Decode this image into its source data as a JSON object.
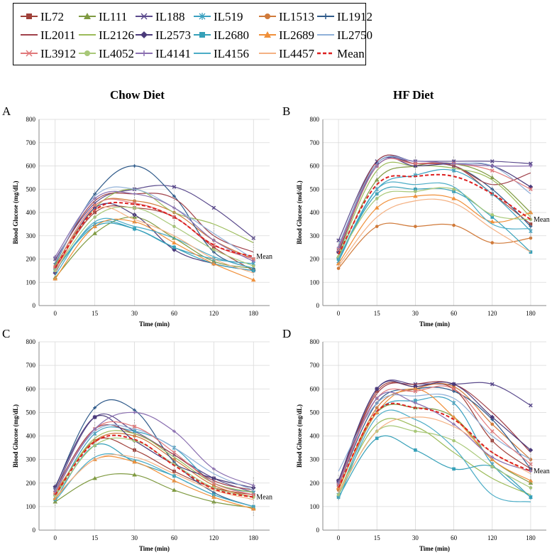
{
  "legend": {
    "entries": [
      "IL72",
      "IL111",
      "IL188",
      "IL519",
      "IL1513",
      "IL1912",
      "IL2011",
      "IL2126",
      "IL2573",
      "IL2680",
      "IL2689",
      "IL2750",
      "IL3912",
      "IL4052",
      "IL4141",
      "IL4156",
      "IL4457",
      "Mean"
    ],
    "colors": [
      "#a0413a",
      "#7f9a41",
      "#5a4a8c",
      "#3aa0c0",
      "#d07a3a",
      "#2f5a8a",
      "#a0414a",
      "#9bbb59",
      "#4a3a7a",
      "#35a0b8",
      "#f0903a",
      "#8fb0d8",
      "#e0787a",
      "#a8c878",
      "#8a6fb0",
      "#4bacc6",
      "#f4b183",
      "#dd2020"
    ],
    "markers": [
      "square",
      "triangle",
      "x",
      "star",
      "circle",
      "plus",
      "none",
      "none",
      "diamond",
      "square",
      "triangle",
      "none",
      "x",
      "circle",
      "plus",
      "none",
      "none",
      "dash"
    ]
  },
  "titles": {
    "chow": "Chow Diet",
    "hf": "HF Diet"
  },
  "chart_data": [
    {
      "type": "line",
      "panel": "A",
      "diet": "Chow Diet",
      "xlabel": "Time (min)",
      "ylabel": "Blood Glucose (mg/dL)",
      "x": [
        0,
        15,
        30,
        60,
        120,
        180
      ],
      "ylim": [
        0,
        800
      ],
      "yticks": [
        0,
        100,
        200,
        300,
        400,
        500,
        600,
        700,
        800
      ],
      "mean_label": "Mean",
      "series": [
        {
          "name": "IL72",
          "values": [
            160,
            400,
            420,
            380,
            250,
            150
          ]
        },
        {
          "name": "IL111",
          "values": [
            120,
            310,
            380,
            290,
            190,
            160
          ]
        },
        {
          "name": "IL188",
          "values": [
            200,
            440,
            500,
            510,
            420,
            290
          ]
        },
        {
          "name": "IL519",
          "values": [
            150,
            350,
            330,
            250,
            200,
            180
          ]
        },
        {
          "name": "IL1513",
          "values": [
            170,
            430,
            450,
            400,
            280,
            200
          ]
        },
        {
          "name": "IL1912",
          "values": [
            180,
            480,
            600,
            470,
            230,
            160
          ]
        },
        {
          "name": "IL2011",
          "values": [
            190,
            450,
            480,
            460,
            300,
            230
          ]
        },
        {
          "name": "IL2126",
          "values": [
            175,
            420,
            500,
            400,
            350,
            270
          ]
        },
        {
          "name": "IL2573",
          "values": [
            140,
            420,
            390,
            240,
            180,
            150
          ]
        },
        {
          "name": "IL2680",
          "values": [
            155,
            340,
            330,
            250,
            180,
            150
          ]
        },
        {
          "name": "IL2689",
          "values": [
            115,
            340,
            360,
            270,
            180,
            110
          ]
        },
        {
          "name": "IL2750",
          "values": [
            185,
            470,
            500,
            420,
            310,
            200
          ]
        },
        {
          "name": "IL3912",
          "values": [
            165,
            430,
            440,
            380,
            260,
            200
          ]
        },
        {
          "name": "IL4052",
          "values": [
            150,
            380,
            420,
            340,
            240,
            170
          ]
        },
        {
          "name": "IL4141",
          "values": [
            210,
            460,
            480,
            420,
            280,
            190
          ]
        },
        {
          "name": "IL4156",
          "values": [
            130,
            360,
            340,
            290,
            210,
            160
          ]
        },
        {
          "name": "IL4457",
          "values": [
            145,
            410,
            370,
            300,
            200,
            140
          ]
        },
        {
          "name": "Mean",
          "values": [
            162,
            410,
            435,
            380,
            260,
            210
          ]
        }
      ]
    },
    {
      "type": "line",
      "panel": "B",
      "diet": "HF Diet",
      "xlabel": "Time (min)",
      "ylabel": "Blood Glucose (md/dL)",
      "x": [
        0,
        15,
        30,
        60,
        120,
        180
      ],
      "ylim": [
        0,
        800
      ],
      "yticks": [
        0,
        100,
        200,
        300,
        400,
        500,
        600,
        700,
        800
      ],
      "mean_label": "Mean",
      "series": [
        {
          "name": "IL72",
          "values": [
            230,
            600,
            610,
            600,
            480,
            350
          ]
        },
        {
          "name": "IL111",
          "values": [
            210,
            540,
            600,
            610,
            550,
            400
          ]
        },
        {
          "name": "IL188",
          "values": [
            280,
            620,
            620,
            620,
            620,
            610
          ]
        },
        {
          "name": "IL519",
          "values": [
            190,
            500,
            560,
            580,
            480,
            320
          ]
        },
        {
          "name": "IL1513",
          "values": [
            160,
            340,
            340,
            345,
            270,
            290
          ]
        },
        {
          "name": "IL1912",
          "values": [
            240,
            610,
            610,
            600,
            500,
            340
          ]
        },
        {
          "name": "IL2011",
          "values": [
            250,
            620,
            610,
            600,
            520,
            570
          ]
        },
        {
          "name": "IL2126",
          "values": [
            220,
            580,
            600,
            590,
            540,
            380
          ]
        },
        {
          "name": "IL2573",
          "values": [
            230,
            610,
            600,
            610,
            600,
            510
          ]
        },
        {
          "name": "IL2680",
          "values": [
            200,
            480,
            500,
            490,
            380,
            230
          ]
        },
        {
          "name": "IL2689",
          "values": [
            180,
            420,
            470,
            460,
            360,
            400
          ]
        },
        {
          "name": "IL2750",
          "values": [
            260,
            610,
            620,
            610,
            600,
            480
          ]
        },
        {
          "name": "IL3912",
          "values": [
            240,
            600,
            610,
            610,
            580,
            500
          ]
        },
        {
          "name": "IL4052",
          "values": [
            210,
            460,
            490,
            500,
            390,
            370
          ]
        },
        {
          "name": "IL4141",
          "values": [
            250,
            600,
            620,
            610,
            600,
            600
          ]
        },
        {
          "name": "IL4156",
          "values": [
            200,
            500,
            520,
            510,
            350,
            330
          ]
        },
        {
          "name": "IL4457",
          "values": [
            170,
            380,
            450,
            440,
            330,
            230
          ]
        },
        {
          "name": "Mean",
          "values": [
            220,
            520,
            555,
            555,
            480,
            370
          ]
        }
      ]
    },
    {
      "type": "line",
      "panel": "C",
      "diet": "Chow Diet",
      "xlabel": "Time (min)",
      "ylabel": "Blood Glucose (mg/dL)",
      "x": [
        0,
        15,
        30,
        60,
        120,
        180
      ],
      "ylim": [
        0,
        800
      ],
      "yticks": [
        0,
        100,
        200,
        300,
        400,
        500,
        600,
        700,
        800
      ],
      "mean_label": "Mean",
      "series": [
        {
          "name": "IL72",
          "values": [
            150,
            380,
            340,
            250,
            180,
            150
          ]
        },
        {
          "name": "IL111",
          "values": [
            120,
            220,
            235,
            170,
            120,
            95
          ]
        },
        {
          "name": "IL188",
          "values": [
            170,
            480,
            420,
            320,
            220,
            160
          ]
        },
        {
          "name": "IL519",
          "values": [
            140,
            410,
            420,
            350,
            200,
            160
          ]
        },
        {
          "name": "IL1513",
          "values": [
            160,
            380,
            400,
            300,
            190,
            140
          ]
        },
        {
          "name": "IL1912",
          "values": [
            180,
            520,
            510,
            290,
            160,
            100
          ]
        },
        {
          "name": "IL2011",
          "values": [
            175,
            430,
            410,
            320,
            210,
            170
          ]
        },
        {
          "name": "IL2126",
          "values": [
            150,
            390,
            410,
            310,
            200,
            160
          ]
        },
        {
          "name": "IL2573",
          "values": [
            185,
            480,
            380,
            280,
            220,
            180
          ]
        },
        {
          "name": "IL2680",
          "values": [
            130,
            360,
            290,
            230,
            150,
            100
          ]
        },
        {
          "name": "IL2689",
          "values": [
            135,
            300,
            290,
            210,
            140,
            90
          ]
        },
        {
          "name": "IL2750",
          "values": [
            170,
            420,
            430,
            350,
            240,
            170
          ]
        },
        {
          "name": "IL3912",
          "values": [
            160,
            430,
            440,
            330,
            200,
            150
          ]
        },
        {
          "name": "IL4052",
          "values": [
            145,
            360,
            380,
            280,
            180,
            140
          ]
        },
        {
          "name": "IL4141",
          "values": [
            165,
            430,
            500,
            420,
            260,
            190
          ]
        },
        {
          "name": "IL4156",
          "values": [
            125,
            310,
            300,
            230,
            150,
            100
          ]
        },
        {
          "name": "IL4457",
          "values": [
            140,
            300,
            310,
            240,
            170,
            130
          ]
        },
        {
          "name": "Mean",
          "values": [
            150,
            375,
            385,
            275,
            175,
            140
          ]
        }
      ]
    },
    {
      "type": "line",
      "panel": "D",
      "diet": "HF Diet",
      "xlabel": "Time (min)",
      "ylabel": "Blood Glucose (mg/dL)",
      "x": [
        0,
        15,
        30,
        60,
        120,
        180
      ],
      "ylim": [
        0,
        800
      ],
      "yticks": [
        0,
        100,
        200,
        300,
        400,
        500,
        600,
        700,
        800
      ],
      "mean_label": "Mean",
      "series": [
        {
          "name": "IL72",
          "values": [
            200,
            590,
            610,
            600,
            380,
            260
          ]
        },
        {
          "name": "IL111",
          "values": [
            180,
            500,
            520,
            480,
            300,
            200
          ]
        },
        {
          "name": "IL188",
          "values": [
            210,
            600,
            620,
            620,
            620,
            530
          ]
        },
        {
          "name": "IL519",
          "values": [
            150,
            500,
            550,
            540,
            280,
            140
          ]
        },
        {
          "name": "IL1513",
          "values": [
            170,
            520,
            600,
            610,
            450,
            300
          ]
        },
        {
          "name": "IL1912",
          "values": [
            190,
            540,
            600,
            590,
            470,
            260
          ]
        },
        {
          "name": "IL2011",
          "values": [
            200,
            580,
            620,
            620,
            500,
            330
          ]
        },
        {
          "name": "IL2126",
          "values": [
            160,
            450,
            440,
            330,
            220,
            150
          ]
        },
        {
          "name": "IL2573",
          "values": [
            210,
            600,
            610,
            620,
            480,
            340
          ]
        },
        {
          "name": "IL2680",
          "values": [
            140,
            390,
            340,
            260,
            270,
            140
          ]
        },
        {
          "name": "IL2689",
          "values": [
            180,
            500,
            600,
            480,
            300,
            210
          ]
        },
        {
          "name": "IL2750",
          "values": [
            250,
            540,
            570,
            560,
            400,
            300
          ]
        },
        {
          "name": "IL3912",
          "values": [
            190,
            560,
            590,
            600,
            420,
            280
          ]
        },
        {
          "name": "IL4052",
          "values": [
            150,
            420,
            420,
            380,
            270,
            180
          ]
        },
        {
          "name": "IL4141",
          "values": [
            200,
            560,
            540,
            450,
            310,
            250
          ]
        },
        {
          "name": "IL4156",
          "values": [
            130,
            480,
            470,
            350,
            150,
            120
          ]
        },
        {
          "name": "IL4457",
          "values": [
            160,
            420,
            480,
            440,
            330,
            240
          ]
        },
        {
          "name": "Mean",
          "values": [
            180,
            505,
            520,
            470,
            330,
            250
          ]
        }
      ]
    }
  ]
}
